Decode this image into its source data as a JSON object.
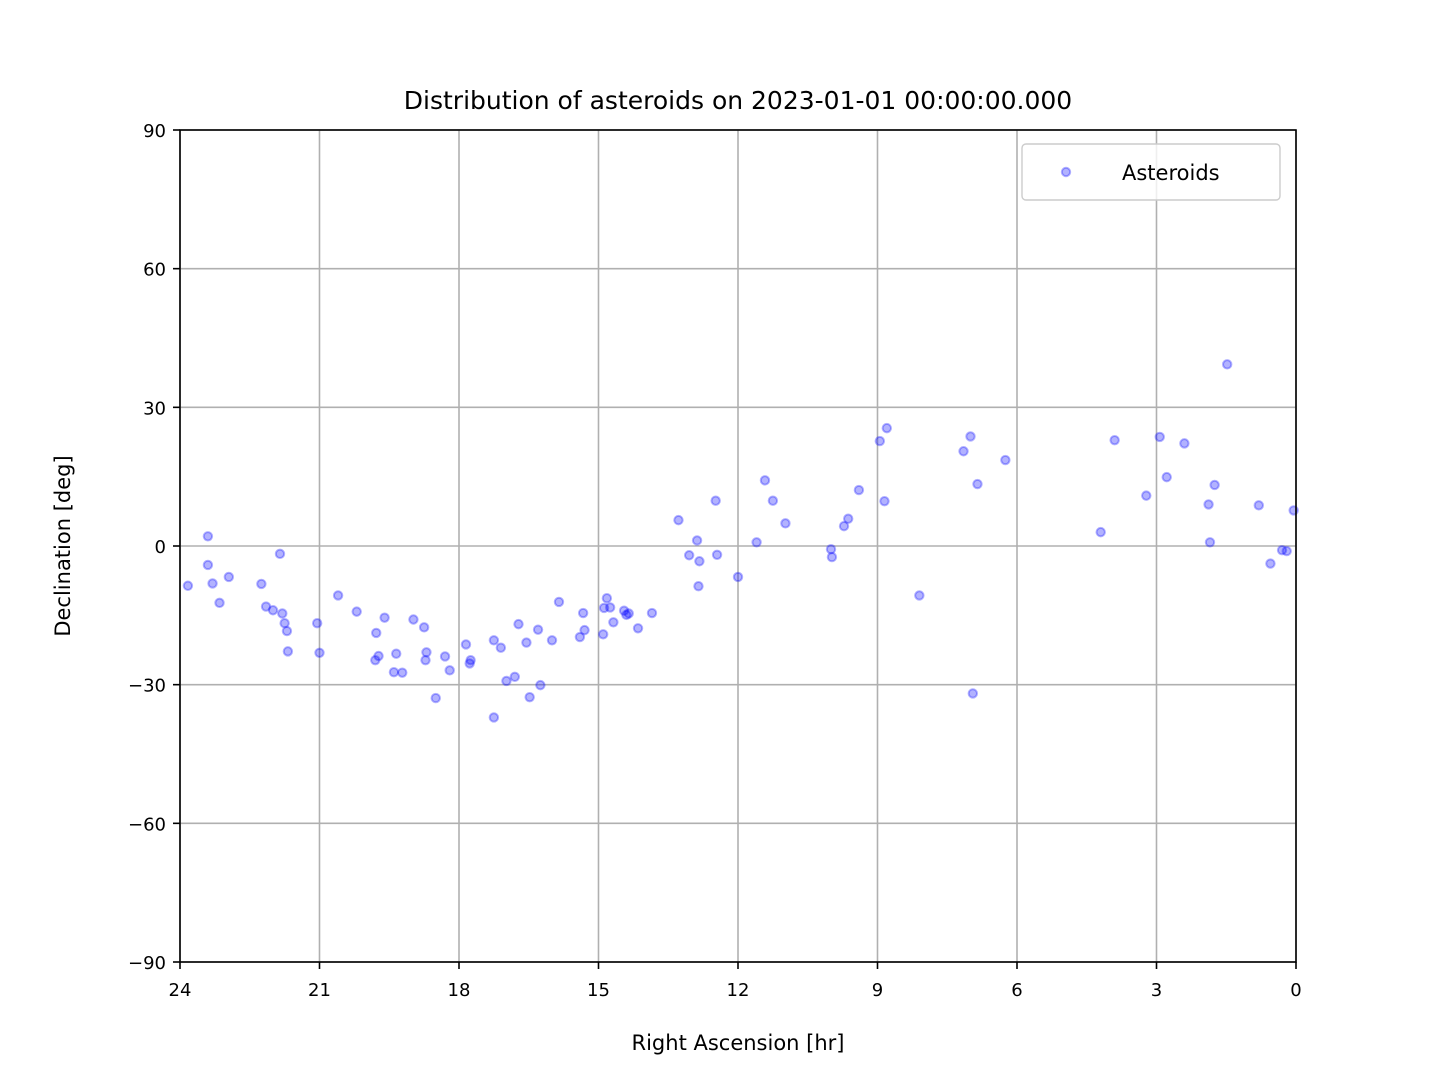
{
  "chart_data": {
    "type": "scatter",
    "title": "Distribution of asteroids on 2023-01-01 00:00:00.000",
    "xlabel": "Right Ascension [hr]",
    "ylabel": "Declination [deg]",
    "xlim": [
      24,
      0
    ],
    "ylim": [
      -90,
      90
    ],
    "xticks": [
      24,
      21,
      18,
      15,
      12,
      9,
      6,
      3,
      0
    ],
    "yticks": [
      90,
      60,
      30,
      0,
      -30,
      -60,
      -90
    ],
    "ytick_labels": [
      "90",
      "60",
      "30",
      "0",
      "−30",
      "−60",
      "−90"
    ],
    "xtick_labels": [
      "24",
      "21",
      "18",
      "15",
      "12",
      "9",
      "6",
      "3",
      "0"
    ],
    "grid": true,
    "legend": {
      "position": "upper-right",
      "entries": [
        "Asteroids"
      ]
    },
    "marker_color": "#0000ff",
    "marker_alpha": 0.3,
    "series": [
      {
        "name": "Asteroids",
        "points": [
          [
            23.83,
            -8.6
          ],
          [
            23.4,
            2.1
          ],
          [
            23.4,
            -4.1
          ],
          [
            23.3,
            -8.1
          ],
          [
            23.15,
            -12.3
          ],
          [
            22.95,
            -6.7
          ],
          [
            22.25,
            -8.2
          ],
          [
            22.15,
            -13.1
          ],
          [
            22.0,
            -13.9
          ],
          [
            21.85,
            -1.7
          ],
          [
            21.8,
            -14.6
          ],
          [
            21.75,
            -16.7
          ],
          [
            21.7,
            -18.4
          ],
          [
            21.68,
            -22.8
          ],
          [
            21.05,
            -16.7
          ],
          [
            21.0,
            -23.1
          ],
          [
            20.6,
            -10.7
          ],
          [
            20.2,
            -14.2
          ],
          [
            19.8,
            -24.7
          ],
          [
            19.78,
            -18.8
          ],
          [
            19.73,
            -23.8
          ],
          [
            19.6,
            -15.5
          ],
          [
            19.4,
            -27.3
          ],
          [
            19.35,
            -23.3
          ],
          [
            19.22,
            -27.4
          ],
          [
            18.98,
            -15.9
          ],
          [
            18.75,
            -17.6
          ],
          [
            18.72,
            -24.7
          ],
          [
            18.7,
            -23.0
          ],
          [
            18.5,
            -32.9
          ],
          [
            18.3,
            -23.9
          ],
          [
            18.2,
            -26.9
          ],
          [
            17.85,
            -21.3
          ],
          [
            17.77,
            -25.4
          ],
          [
            17.75,
            -24.7
          ],
          [
            17.25,
            -20.4
          ],
          [
            17.25,
            -37.1
          ],
          [
            17.1,
            -22.0
          ],
          [
            16.98,
            -29.2
          ],
          [
            16.8,
            -28.3
          ],
          [
            16.72,
            -16.9
          ],
          [
            16.55,
            -20.9
          ],
          [
            16.48,
            -32.7
          ],
          [
            16.3,
            -18.1
          ],
          [
            16.25,
            -30.1
          ],
          [
            16.0,
            -20.4
          ],
          [
            15.85,
            -12.1
          ],
          [
            15.4,
            -19.7
          ],
          [
            15.33,
            -14.5
          ],
          [
            15.3,
            -18.2
          ],
          [
            14.9,
            -19.1
          ],
          [
            14.88,
            -13.4
          ],
          [
            14.82,
            -11.3
          ],
          [
            14.75,
            -13.3
          ],
          [
            14.68,
            -16.5
          ],
          [
            14.45,
            -14.0
          ],
          [
            14.4,
            -14.9
          ],
          [
            14.35,
            -14.6
          ],
          [
            14.15,
            -17.8
          ],
          [
            13.85,
            -14.5
          ],
          [
            13.28,
            5.6
          ],
          [
            13.05,
            -2.0
          ],
          [
            12.88,
            1.2
          ],
          [
            12.85,
            -8.7
          ],
          [
            12.83,
            -3.3
          ],
          [
            12.48,
            9.8
          ],
          [
            12.45,
            -1.9
          ],
          [
            12.0,
            -6.7
          ],
          [
            11.6,
            0.8
          ],
          [
            11.42,
            14.2
          ],
          [
            11.25,
            9.8
          ],
          [
            10.98,
            4.9
          ],
          [
            10.0,
            -0.7
          ],
          [
            9.98,
            -2.4
          ],
          [
            9.72,
            4.3
          ],
          [
            9.63,
            5.9
          ],
          [
            9.4,
            12.1
          ],
          [
            8.95,
            22.7
          ],
          [
            8.85,
            9.7
          ],
          [
            8.8,
            25.5
          ],
          [
            8.1,
            -10.7
          ],
          [
            7.15,
            20.5
          ],
          [
            7.0,
            23.7
          ],
          [
            6.95,
            -31.9
          ],
          [
            6.85,
            13.4
          ],
          [
            6.25,
            18.6
          ],
          [
            4.2,
            3.0
          ],
          [
            3.9,
            22.9
          ],
          [
            3.22,
            10.9
          ],
          [
            2.93,
            23.6
          ],
          [
            2.78,
            14.9
          ],
          [
            2.4,
            22.2
          ],
          [
            1.88,
            9.0
          ],
          [
            1.85,
            0.8
          ],
          [
            1.75,
            13.2
          ],
          [
            1.48,
            39.3
          ],
          [
            0.8,
            8.8
          ],
          [
            0.55,
            -3.8
          ],
          [
            0.3,
            -0.9
          ],
          [
            0.2,
            -1.1
          ],
          [
            0.05,
            7.7
          ]
        ]
      }
    ]
  }
}
